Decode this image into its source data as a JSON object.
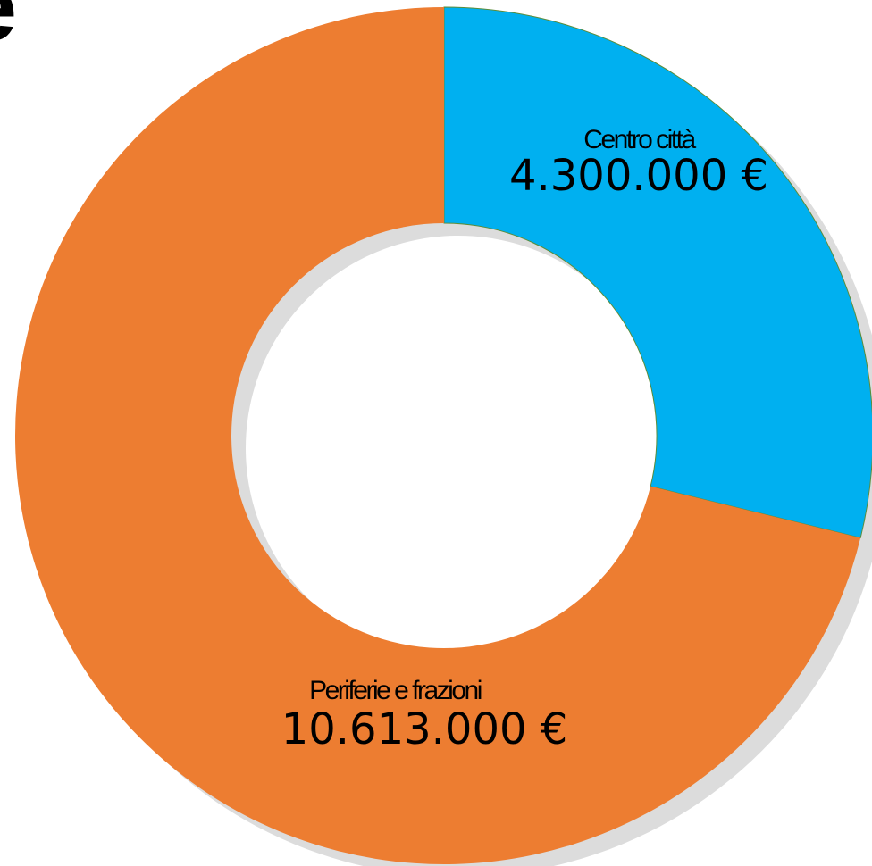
{
  "chart_data": {
    "type": "donut",
    "title": "e",
    "categories": [
      "Centro città",
      "Periferie e frazioni"
    ],
    "values": [
      4300000,
      10613000
    ],
    "value_labels": [
      "4.300.000 €",
      "10.613.000 €"
    ],
    "colors": [
      "#00b0f0",
      "#ed7d31"
    ]
  }
}
